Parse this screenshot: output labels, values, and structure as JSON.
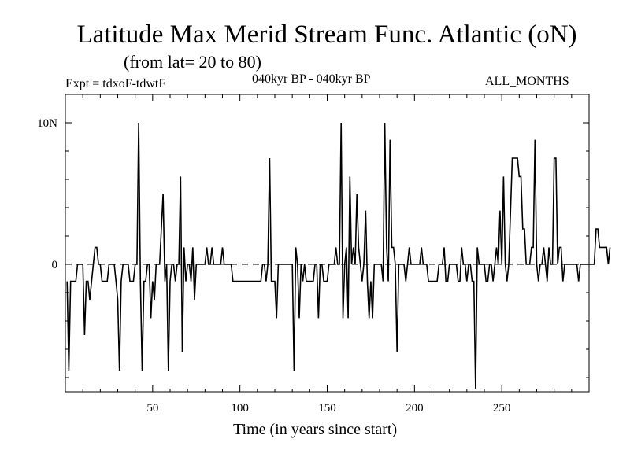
{
  "title": "Latitude Max Merid Stream Func. Atlantic (oN)",
  "subtitle": "(from lat= 20 to 80)",
  "expt_label": "Expt = tdxoF-tdwtF",
  "period_label": "040kyr BP - 040kyr BP",
  "months_label": "ALL_MONTHS",
  "chart_data": {
    "type": "line",
    "xlabel": "Time (in years since start)",
    "ylabel": "",
    "xlim": [
      0,
      300
    ],
    "ylim": [
      -9,
      12
    ],
    "x_ticks": [
      50,
      100,
      150,
      200,
      250
    ],
    "x_tick_labels": [
      "50",
      "100",
      "150",
      "200",
      "250"
    ],
    "y_tick_labels": [
      {
        "value": 10,
        "label": "10N"
      },
      {
        "value": 0,
        "label": "0"
      }
    ],
    "zero_line": "dashed",
    "series": [
      {
        "x_start": 1,
        "x_step": 1,
        "values": [
          -1.2,
          -7.5,
          -1.2,
          -1.2,
          -1.2,
          -1.2,
          0,
          0,
          0,
          0,
          -5,
          -1.2,
          -1.2,
          -2.5,
          -1.2,
          0,
          1.2,
          1.2,
          0,
          0,
          -1.2,
          -1.2,
          -1.2,
          -1.2,
          0,
          0,
          0,
          0,
          -1.2,
          -2.5,
          -7.5,
          -1.2,
          0,
          0,
          0,
          0,
          -1.2,
          -1.2,
          -1.2,
          0,
          0,
          10,
          -1.2,
          -7.5,
          -1.2,
          -1.2,
          0,
          0,
          -3.8,
          -1.2,
          -2.5,
          0,
          0,
          0,
          2.5,
          5,
          -1.2,
          0,
          -7.5,
          -1.2,
          0,
          0,
          -1.2,
          0,
          0,
          6.2,
          -6.2,
          1.2,
          -1.2,
          0,
          0,
          -1.2,
          1.2,
          -2.5,
          0,
          0,
          0,
          0,
          0,
          0,
          1.2,
          0,
          0,
          1.2,
          0,
          0,
          0,
          0,
          0,
          1.2,
          0,
          0,
          0,
          0,
          0,
          -1.2,
          -1.2,
          -1.2,
          -1.2,
          -1.2,
          -1.2,
          -1.2,
          -1.2,
          -1.2,
          -1.2,
          -1.2,
          -1.2,
          -1.2,
          -1.2,
          -1.2,
          -1.2,
          -1.2,
          0,
          0,
          -1.2,
          0,
          7.5,
          -1.2,
          -1.2,
          -1.2,
          -3.8,
          0,
          0,
          0,
          0,
          0,
          0,
          0,
          0,
          0,
          -7.5,
          1.2,
          0,
          -3.8,
          0,
          -1.2,
          0,
          -1.2,
          -1.2,
          -1.2,
          -1.2,
          -1.2,
          0,
          0,
          -3.8,
          0,
          0,
          -1.2,
          -1.2,
          -1.2,
          0,
          0,
          0,
          0,
          1.2,
          0,
          0,
          10,
          -3.8,
          0,
          1.2,
          -3.8,
          6.2,
          0,
          1.2,
          0,
          5,
          1.2,
          0,
          -1.2,
          0,
          3.8,
          -1.2,
          -3.8,
          -1.2,
          -3.8,
          0,
          0,
          0,
          0,
          0,
          -1.2,
          10,
          1.2,
          -1.2,
          8.8,
          1.2,
          1.2,
          0,
          -6.2,
          0,
          0,
          0,
          0,
          -1.2,
          0,
          1.2,
          0,
          0,
          0,
          0,
          0,
          0,
          1.2,
          0,
          0,
          0,
          -1.2,
          -1.2,
          -1.2,
          -1.2,
          -1.2,
          -1.2,
          0,
          0,
          0,
          1.2,
          -1.2,
          -1.2,
          0,
          0,
          0,
          0,
          0,
          -1.2,
          -1.2,
          1.2,
          0,
          0,
          -1.2,
          0,
          0,
          -1.2,
          -1.2,
          -8.8,
          1.2,
          0,
          0,
          0,
          0,
          -1.2,
          -1.2,
          0,
          0,
          -1.2,
          0,
          1.2,
          0,
          3.8,
          0,
          6.2,
          0,
          -1.2,
          0,
          3.8,
          7.5,
          7.5,
          7.5,
          7.5,
          6.2,
          6.2,
          2.5,
          2.5,
          0,
          0,
          0,
          1.2,
          1.2,
          8.8,
          0,
          -1.2,
          0,
          0,
          1.2,
          0,
          -1.2,
          1.2,
          0,
          0,
          7.5,
          7.5,
          0,
          1.2,
          1.2,
          -1.2,
          0,
          0,
          0,
          0,
          0,
          0,
          0,
          0,
          -1.2,
          0,
          0,
          0,
          0,
          0,
          0,
          0,
          0,
          0,
          2.5,
          2.5,
          1.2,
          1.2,
          1.2,
          1.2,
          1.2,
          0,
          1.2
        ]
      }
    ]
  }
}
